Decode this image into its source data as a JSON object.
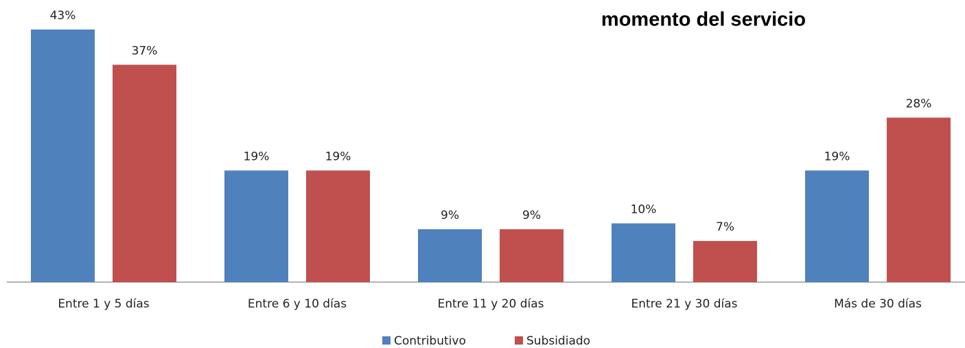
{
  "chart_data": {
    "type": "bar",
    "title": "momento del servicio",
    "categories": [
      "Entre 1 y 5 días",
      "Entre 6 y 10 días",
      "Entre 11 y 20 días",
      "Entre 21 y 30 días",
      "Más de 30 días"
    ],
    "series": [
      {
        "name": "Contributivo",
        "color": "#4f81bd",
        "values": [
          43,
          19,
          9,
          10,
          19
        ],
        "value_labels": [
          "43%",
          "19%",
          "9%",
          "10%",
          "19%"
        ]
      },
      {
        "name": "Subsidiado",
        "color": "#c0504d",
        "values": [
          37,
          19,
          9,
          7,
          28
        ],
        "value_labels": [
          "37%",
          "19%",
          "9%",
          "7%",
          "28%"
        ]
      }
    ]
  }
}
